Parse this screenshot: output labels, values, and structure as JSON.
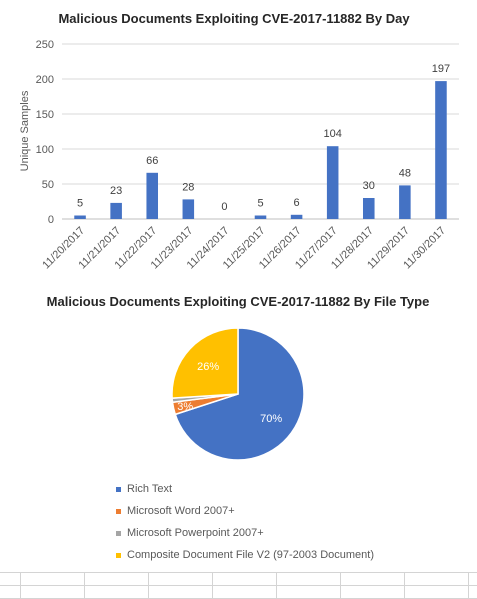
{
  "chart_data": [
    {
      "type": "bar",
      "title": "Malicious Documents Exploiting CVE-2017-11882 By Day",
      "ylabel": "Unique Samples",
      "xlabel": "",
      "ylim": [
        0,
        250
      ],
      "yticks": [
        0,
        50,
        100,
        150,
        200,
        250
      ],
      "grid": true,
      "categories": [
        "11/20/2017",
        "11/21/2017",
        "11/22/2017",
        "11/23/2017",
        "11/24/2017",
        "11/25/2017",
        "11/26/2017",
        "11/27/2017",
        "11/28/2017",
        "11/29/2017",
        "11/30/2017"
      ],
      "values": [
        5,
        23,
        66,
        28,
        0,
        5,
        6,
        104,
        30,
        48,
        197
      ],
      "data_labels": [
        "5",
        "23",
        "66",
        "28",
        "0",
        "5",
        "6",
        "104",
        "30",
        "48",
        "197"
      ],
      "bar_color": "#4472c4"
    },
    {
      "type": "pie",
      "title": "Malicious Documents Exploiting CVE-2017-11882 By File Type",
      "categories": [
        "Rich Text",
        "Microsoft Word 2007+",
        "Microsoft Powerpoint 2007+",
        "Composite Document File V2 (97-2003 Document)"
      ],
      "values": [
        70,
        3,
        1,
        26
      ],
      "data_labels": [
        "70%",
        "3%",
        "",
        "26%"
      ],
      "colors": [
        "#4472c4",
        "#ed7d31",
        "#a5a5a5",
        "#ffc000"
      ],
      "legend_position": "bottom"
    }
  ]
}
